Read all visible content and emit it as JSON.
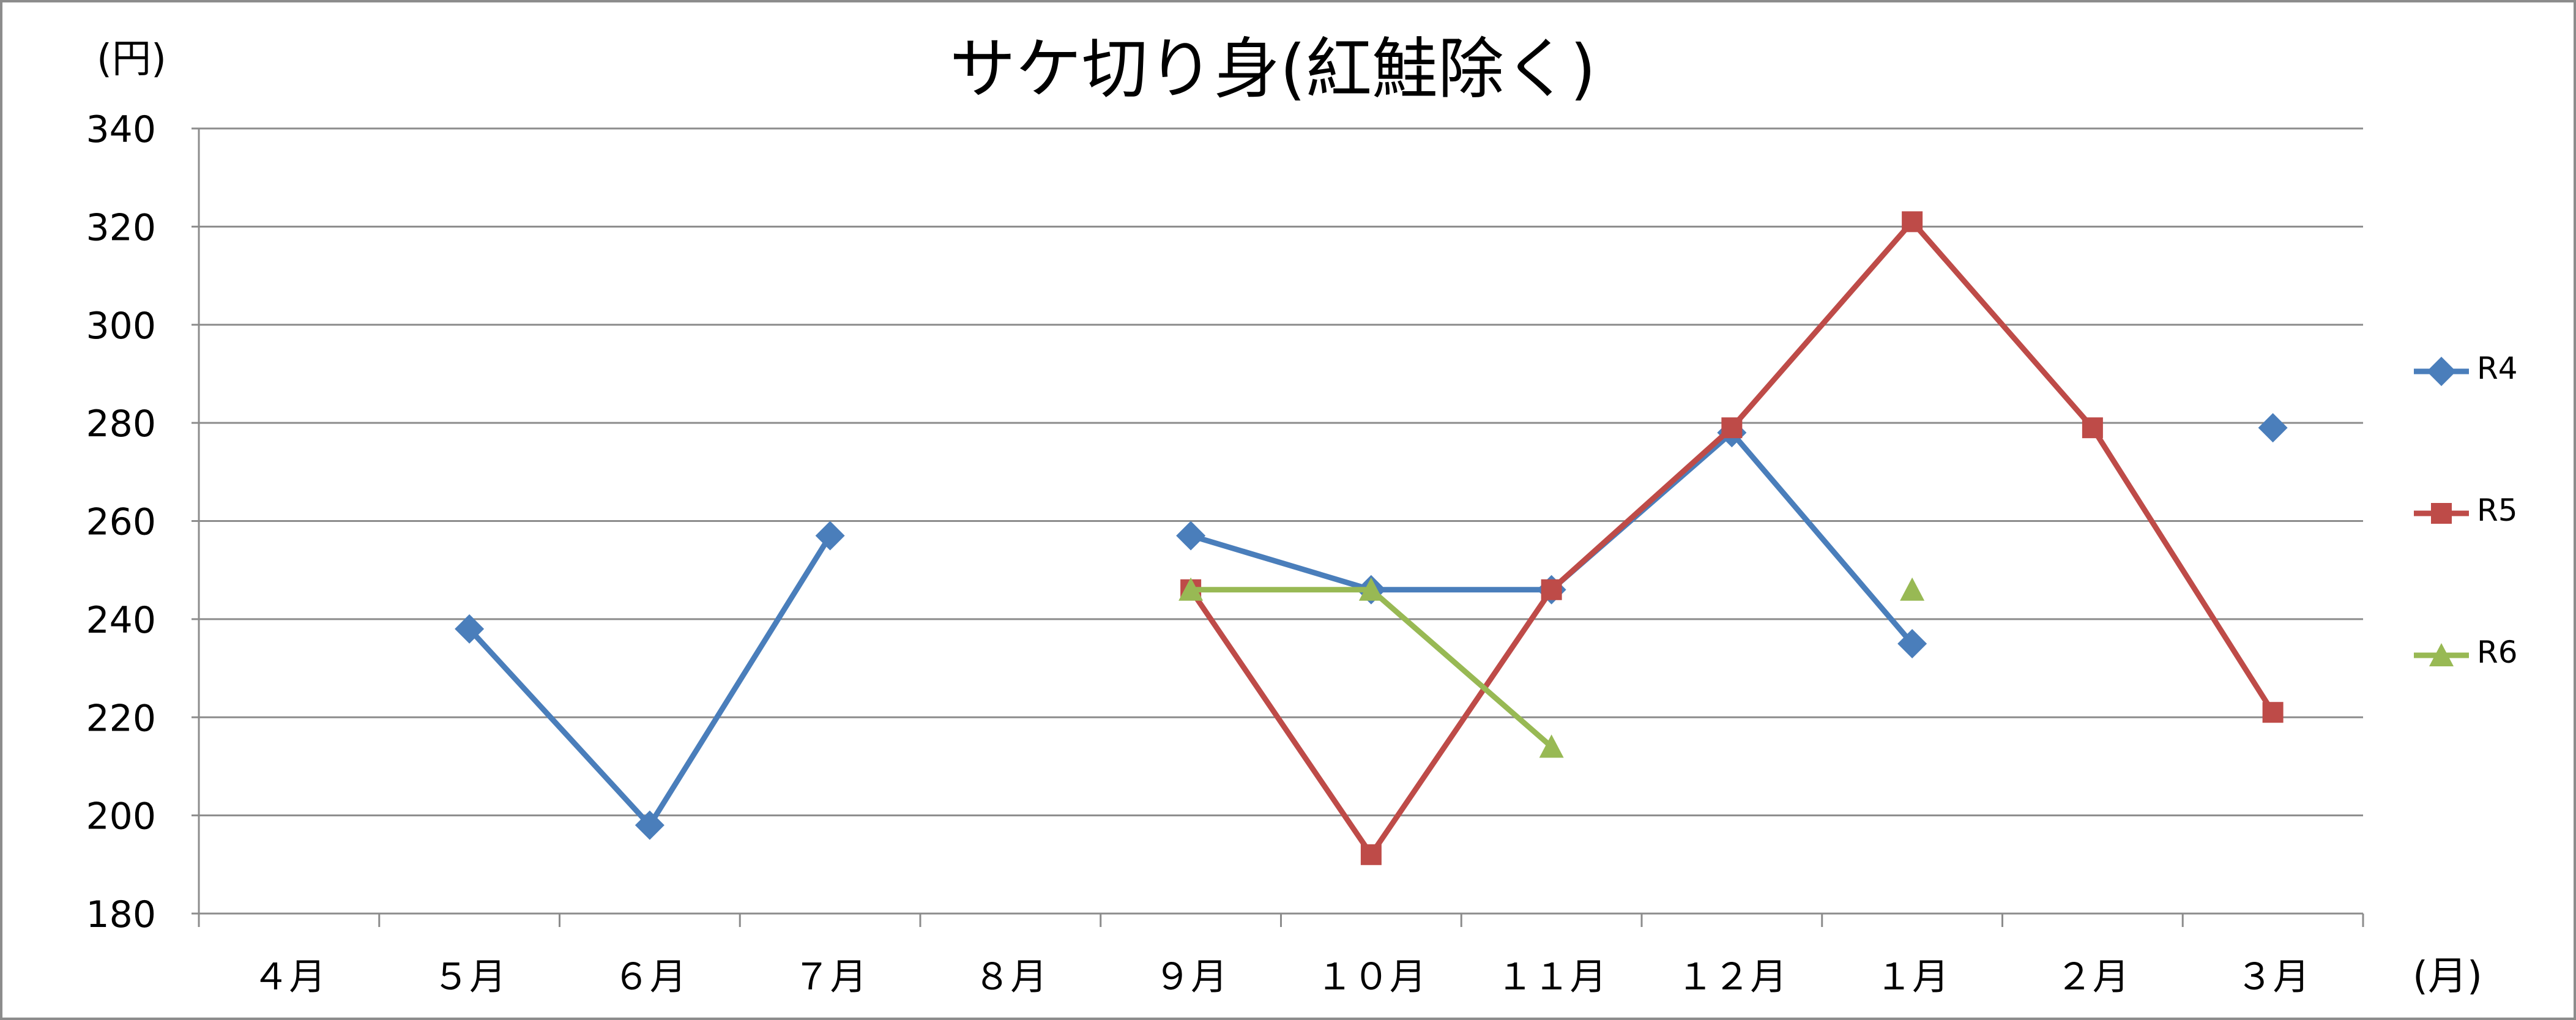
{
  "chart_data": {
    "type": "line",
    "title": "サケ切り身(紅鮭除く)",
    "ylabel": "(円)",
    "xlabel": "(月)",
    "categories": [
      "４月",
      "５月",
      "６月",
      "７月",
      "８月",
      "９月",
      "１０月",
      "１１月",
      "１２月",
      "１月",
      "２月",
      "３月"
    ],
    "ylim": [
      180,
      340
    ],
    "yticks": [
      180,
      200,
      220,
      240,
      260,
      280,
      300,
      320,
      340
    ],
    "grid": true,
    "legend_position": "right",
    "series": [
      {
        "name": "R4",
        "marker": "diamond",
        "color": "#4a7ebb",
        "values": [
          null,
          238,
          198,
          257,
          null,
          257,
          246,
          246,
          278,
          235,
          null,
          279
        ]
      },
      {
        "name": "R5",
        "marker": "square",
        "color": "#be4b48",
        "values": [
          null,
          null,
          null,
          null,
          null,
          246,
          192,
          246,
          279,
          321,
          279,
          221
        ]
      },
      {
        "name": "R6",
        "marker": "triangle",
        "color": "#98b954",
        "values": [
          null,
          null,
          null,
          null,
          null,
          246,
          246,
          214,
          null,
          246,
          null,
          null
        ]
      }
    ]
  }
}
